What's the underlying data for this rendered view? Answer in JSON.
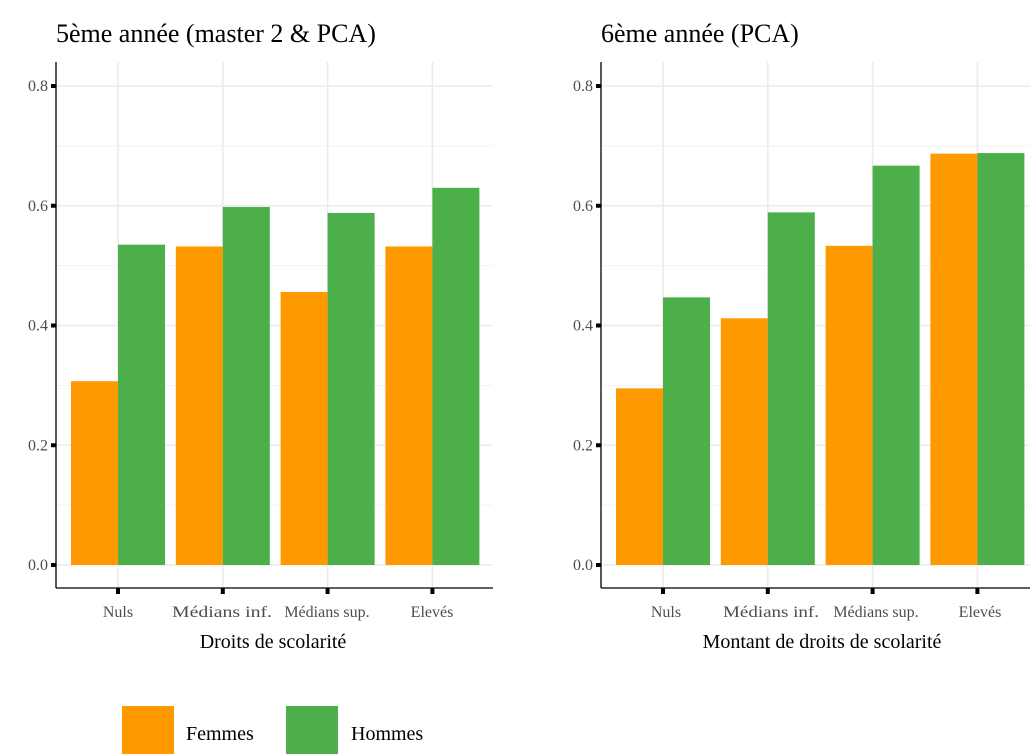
{
  "colors": {
    "Femmes": "#ff9900",
    "Hommes": "#4daf4a"
  },
  "chart_data": [
    {
      "type": "bar",
      "title": "5ème année (master 2 & PCA)",
      "xlabel": "Droits de scolarité",
      "ylabel": "",
      "ylim": [
        0,
        0.8
      ],
      "yticks": [
        "0.0",
        "0.2",
        "0.4",
        "0.6",
        "0.8"
      ],
      "categories": [
        "Nuls",
        "Médians inf.",
        "Médians sup.",
        "Elevés"
      ],
      "series": [
        {
          "name": "Femmes",
          "values": [
            0.307,
            0.532,
            0.456,
            0.532
          ]
        },
        {
          "name": "Hommes",
          "values": [
            0.535,
            0.598,
            0.588,
            0.63
          ]
        }
      ],
      "grid": true
    },
    {
      "type": "bar",
      "title": "6ème année (PCA)",
      "xlabel": "Montant de droits de scolarité",
      "ylabel": "",
      "ylim": [
        0,
        0.8
      ],
      "yticks": [
        "0.0",
        "0.2",
        "0.4",
        "0.6",
        "0.8"
      ],
      "categories": [
        "Nuls",
        "Médians inf.",
        "Médians sup.",
        "Elevés"
      ],
      "series": [
        {
          "name": "Femmes",
          "values": [
            0.295,
            0.412,
            0.533,
            0.687
          ]
        },
        {
          "name": "Hommes",
          "values": [
            0.447,
            0.589,
            0.667,
            0.688
          ]
        }
      ],
      "grid": true
    }
  ],
  "legend": {
    "position": "bottom",
    "items": [
      "Femmes",
      "Hommes"
    ]
  }
}
